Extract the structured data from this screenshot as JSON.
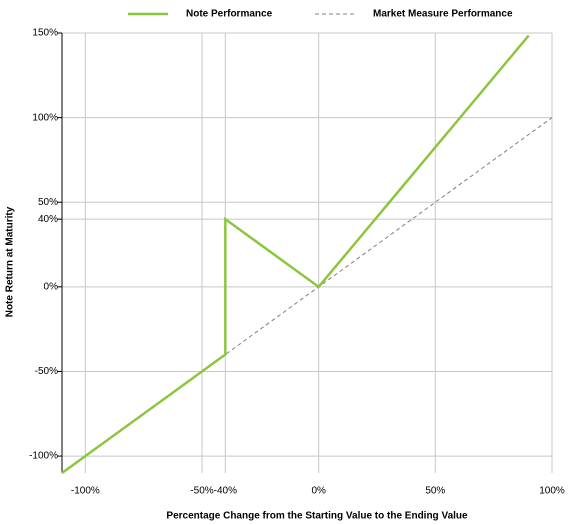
{
  "chart_data": {
    "type": "line",
    "x_label": "Percentage Change from the Starting Value to the Ending Value",
    "y_label": "Note Return at Maturity",
    "xlim": [
      -110,
      100
    ],
    "ylim": [
      -110,
      150
    ],
    "xticks": [
      {
        "value": -100,
        "label": "-100%"
      },
      {
        "value": -50,
        "label": "-50%"
      },
      {
        "value": -40,
        "label": "-40%"
      },
      {
        "value": 0,
        "label": "0%"
      },
      {
        "value": 50,
        "label": "50%"
      },
      {
        "value": 100,
        "label": "100%"
      }
    ],
    "yticks": [
      {
        "value": 150,
        "label": "150%"
      },
      {
        "value": 100,
        "label": "100%"
      },
      {
        "value": 50,
        "label": "50%"
      },
      {
        "value": 40,
        "label": "40%"
      },
      {
        "value": 0,
        "label": "0%"
      },
      {
        "value": -50,
        "label": "-50%"
      },
      {
        "value": -100,
        "label": "-100%"
      }
    ],
    "grid": true,
    "series": [
      {
        "name": "Note Performance",
        "color": "#8cc63f",
        "dash": false,
        "x": [
          -110,
          -40,
          -40,
          0,
          90
        ],
        "values": [
          -110,
          -40,
          40,
          0,
          148.5
        ]
      },
      {
        "name": "Market Measure Performance",
        "color": "#808080",
        "dash": true,
        "x": [
          -110,
          100
        ],
        "values": [
          -110,
          100
        ]
      }
    ]
  }
}
